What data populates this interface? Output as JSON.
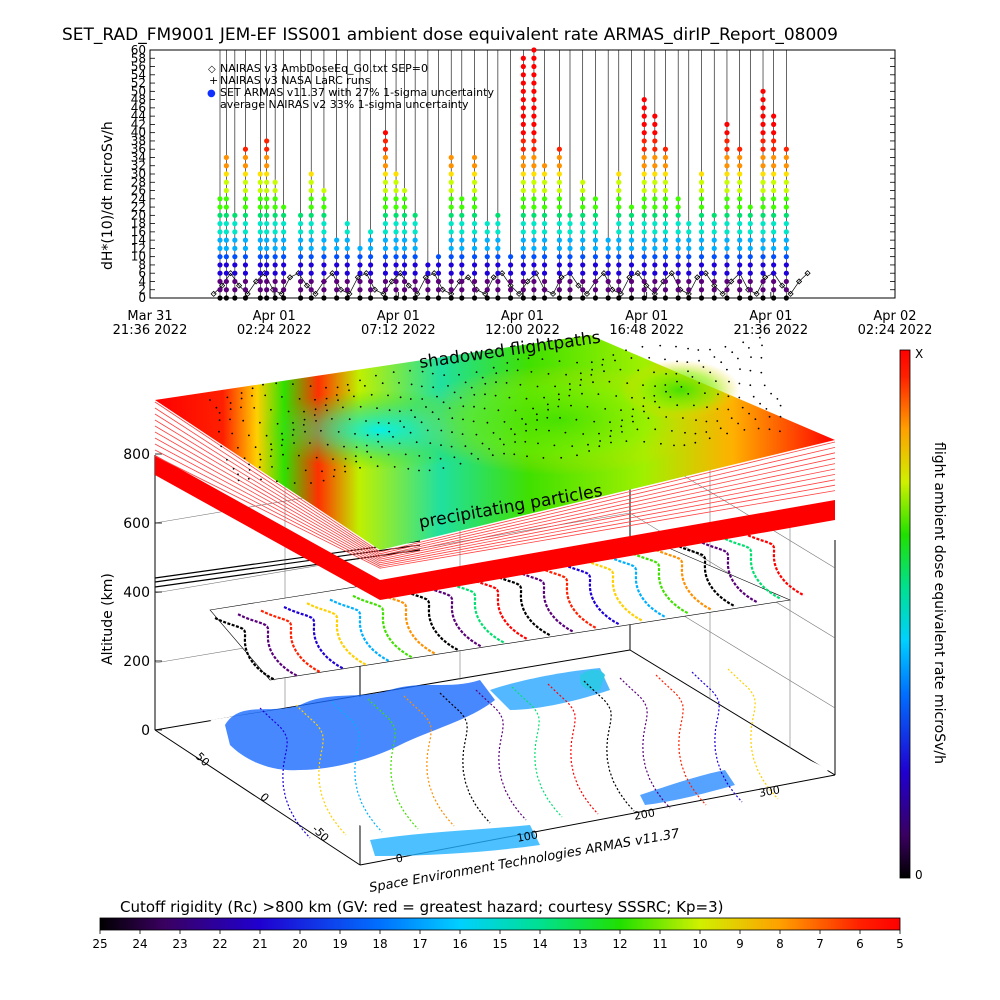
{
  "title": "SET_RAD_FM9001  JEM-EF ISS001 ambient dose equivalent rate ARMAS_dirIP_Report_08009",
  "top_chart": {
    "ylabel": "dH*(10)/dt microSv/h",
    "y_ticks": [
      "0",
      "2",
      "4",
      "6",
      "8",
      "10",
      "12",
      "14",
      "16",
      "18",
      "20",
      "22",
      "24",
      "26",
      "28",
      "30",
      "32",
      "34",
      "36",
      "38",
      "40",
      "42",
      "44",
      "46",
      "48",
      "50",
      "52",
      "54",
      "56",
      "58",
      "60"
    ],
    "x_ticks": [
      {
        "l1": "Mar 31",
        "l2": "21:36 2022"
      },
      {
        "l1": "Apr 01",
        "l2": "02:24 2022"
      },
      {
        "l1": "Apr 01",
        "l2": "07:12 2022"
      },
      {
        "l1": "Apr 01",
        "l2": "12:00 2022"
      },
      {
        "l1": "Apr 01",
        "l2": "16:48 2022"
      },
      {
        "l1": "Apr 01",
        "l2": "21:36 2022"
      },
      {
        "l1": "Apr 02",
        "l2": "02:24 2022"
      }
    ],
    "legend": [
      {
        "symbol": "◇",
        "text": "NAIRAS v3 AmbDoseEq_G0.txt SEP=0"
      },
      {
        "symbol": "+",
        "text": "NAIRAS v3 NASA LaRC runs"
      },
      {
        "symbol": "●",
        "text": "SET ARMAS v11.37 with 27% 1-sigma uncertainty"
      },
      {
        "symbol": "",
        "text": "average NAIRAS v2 33% 1-sigma uncertainty"
      }
    ]
  },
  "chart_data": [
    {
      "type": "scatter",
      "title": "SET_RAD_FM9001  JEM-EF ISS001 ambient dose equivalent rate ARMAS_dirIP_Report_08009",
      "ylabel": "dH*(10)/dt microSv/h",
      "ylim": [
        0,
        60
      ],
      "xlim": [
        "2022-03-31 21:36",
        "2022-04-02 02:24"
      ],
      "series": [
        {
          "name": "NAIRAS v3 AmbDoseEq_G0.txt SEP=0",
          "x_hours_note_free": true,
          "x": [
            3.0,
            3.4,
            3.8,
            4.2,
            4.6,
            5.0,
            5.4,
            5.8,
            6.2,
            6.6,
            7.0,
            7.4,
            7.8,
            8.2,
            8.6,
            9.0,
            9.4,
            9.8,
            10.2,
            10.6,
            11.0,
            11.4,
            11.8,
            12.2,
            12.6,
            13.0,
            13.4,
            13.8,
            14.2,
            14.6,
            15.0,
            15.4,
            15.8,
            16.2,
            16.6,
            17.0,
            17.4,
            17.8,
            18.2,
            18.6,
            19.0,
            19.4,
            19.8,
            20.2,
            20.6,
            21.0,
            21.4,
            21.8,
            22.2,
            22.6,
            23.0,
            23.4,
            23.8,
            24.2,
            24.6,
            25.0,
            25.4,
            25.8,
            26.2,
            26.6,
            27.0,
            27.4,
            27.8,
            28.2,
            28.6,
            29.0,
            29.4,
            29.8,
            30.2,
            30.6,
            31.0
          ],
          "y": [
            1,
            3,
            6,
            3,
            1,
            4,
            6,
            2,
            1,
            5,
            6,
            3,
            1,
            4,
            6,
            2,
            1,
            5,
            6,
            2,
            1,
            4,
            6,
            3,
            1,
            5,
            6,
            2,
            1,
            4,
            5,
            2,
            1,
            5,
            6,
            3,
            1,
            4,
            6,
            2,
            1,
            5,
            6,
            3,
            1,
            4,
            6,
            2,
            1,
            5,
            6,
            3,
            1,
            4,
            6,
            2,
            1,
            5,
            6,
            3,
            1,
            4,
            6,
            2,
            1,
            5,
            6,
            3,
            1,
            4,
            6
          ]
        },
        {
          "name": "SET ARMAS v11.37 with 27% 1-sigma uncertainty",
          "x": [
            3.3,
            3.6,
            4.0,
            4.5,
            5.2,
            5.5,
            5.9,
            6.3,
            7.1,
            7.6,
            8.2,
            8.8,
            9.3,
            9.9,
            10.4,
            11.1,
            11.6,
            12.0,
            12.5,
            13.1,
            13.6,
            14.2,
            14.7,
            15.3,
            15.9,
            16.4,
            17.0,
            17.6,
            18.1,
            18.6,
            19.3,
            19.8,
            20.4,
            21.0,
            21.6,
            22.1,
            22.7,
            23.3,
            23.8,
            24.3,
            24.9,
            25.4,
            26.0,
            26.6,
            27.2,
            27.8,
            28.3,
            28.9,
            29.4,
            30.0
          ],
          "y": [
            24,
            34,
            20,
            36,
            31,
            38,
            28,
            22,
            20,
            30,
            26,
            14,
            18,
            12,
            16,
            40,
            30,
            26,
            20,
            8,
            10,
            34,
            24,
            34,
            18,
            20,
            10,
            58,
            60,
            32,
            36,
            20,
            28,
            24,
            14,
            30,
            22,
            48,
            44,
            36,
            24,
            18,
            30,
            20,
            42,
            36,
            22,
            50,
            44,
            36
          ]
        }
      ]
    },
    {
      "type": "heatmap",
      "title": "Cutoff rigidity (Rc) >800 km (GV: red = greatest hazard; courtesy SSSRC; Kp=3)",
      "ylabel": "Altitude (km)",
      "zlim": [
        0,
        800
      ],
      "annotations": [
        "shadowed flightpaths",
        "precipitating particles",
        "Space Environment Technologies ARMAS v11.37"
      ],
      "colorbar_label": "Cutoff rigidity (Rc) >800 km (GV: red = greatest hazard; courtesy SSSRC; Kp=3)",
      "colorbar_ticks": [
        25,
        24,
        23,
        22,
        21,
        20,
        19,
        18,
        17,
        16,
        15,
        14,
        13,
        12,
        11,
        10,
        9,
        8,
        7,
        6,
        5
      ]
    }
  ],
  "perspective": {
    "z_ticks": [
      "0",
      "200",
      "400",
      "600",
      "800"
    ],
    "ylabel": "Altitude (km)",
    "lat_ticks": [
      "50",
      "0",
      "-50"
    ],
    "lon_ticks": [
      "0",
      "100",
      "200",
      "300"
    ],
    "label_shadowed": "shadowed flightpaths",
    "label_precip": "precipitating particles",
    "credit": "Space Environment Technologies ARMAS v11.37"
  },
  "right_colorbar": {
    "label": "flight ambient dose equivalent rate microSv/h",
    "top": "X",
    "bottom": "0"
  },
  "bottom_colorbar": {
    "title": "Cutoff rigidity (Rc) >800 km (GV: red = greatest hazard; courtesy SSSRC; Kp=3)",
    "ticks": [
      "25",
      "24",
      "23",
      "22",
      "21",
      "20",
      "19",
      "18",
      "17",
      "16",
      "15",
      "14",
      "13",
      "12",
      "11",
      "10",
      "9",
      "8",
      "7",
      "6",
      "5"
    ]
  },
  "colors": {
    "rainbow": [
      "#000000",
      "#5a007a",
      "#1e00d8",
      "#0050ff",
      "#00b0ff",
      "#00e8c8",
      "#00e070",
      "#40ff00",
      "#c8ff00",
      "#ffe000",
      "#ff9000",
      "#ff2000",
      "#ff0000"
    ]
  }
}
